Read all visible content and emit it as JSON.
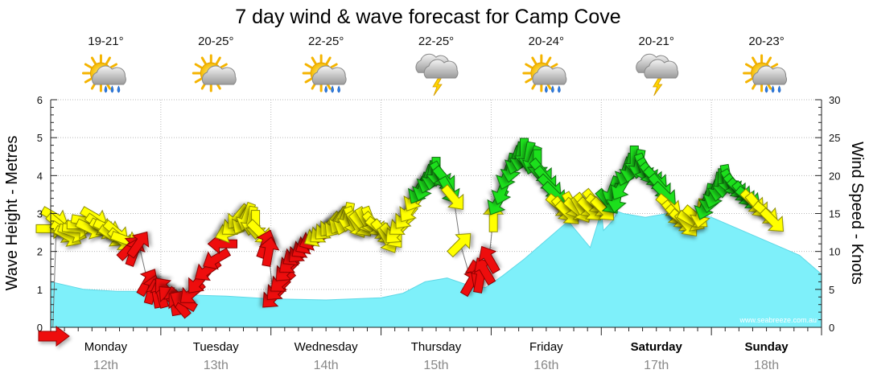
{
  "chart_data": {
    "type": "area+arrows",
    "title": "7 day wind & wave forecast for Camp Cove",
    "ylabel_left": "Wave Height - Metres",
    "ylabel_right": "Wind Speed - Knots",
    "ylim_left": [
      0,
      6
    ],
    "ylim_right": [
      0,
      30
    ],
    "yticks_left": [
      "0",
      "1",
      "2",
      "3",
      "4",
      "5",
      "6"
    ],
    "yticks_right": [
      "0",
      "5",
      "10",
      "15",
      "20",
      "25",
      "30"
    ],
    "watermark": "www.seabreeze.com.au",
    "days": [
      {
        "name": "Monday",
        "date": "12th",
        "temp": "19-21°",
        "weather": "sun-cloud-rain",
        "bold": false
      },
      {
        "name": "Tuesday",
        "date": "13th",
        "temp": "20-25°",
        "weather": "sun-cloud",
        "bold": false
      },
      {
        "name": "Wednesday",
        "date": "14th",
        "temp": "22-25°",
        "weather": "sun-cloud-rain",
        "bold": false
      },
      {
        "name": "Thursday",
        "date": "15th",
        "temp": "22-25°",
        "weather": "storm",
        "bold": false
      },
      {
        "name": "Friday",
        "date": "16th",
        "temp": "20-24°",
        "weather": "sun-cloud-rain",
        "bold": false
      },
      {
        "name": "Saturday",
        "date": "17th",
        "temp": "20-21°",
        "weather": "storm",
        "bold": true
      },
      {
        "name": "Sunday",
        "date": "18th",
        "temp": "20-23°",
        "weather": "sun-cloud-rain",
        "bold": true
      }
    ],
    "wave_height": {
      "x_days": [
        0,
        0.3,
        0.6,
        1.0,
        1.3,
        1.6,
        2.0,
        2.5,
        3.0,
        3.2,
        3.4,
        3.6,
        3.8,
        3.95,
        4.1,
        4.3,
        4.5,
        4.7,
        4.9,
        5.0,
        5.02,
        5.1,
        5.15,
        5.2,
        5.4,
        5.6,
        5.8,
        6.0,
        6.4,
        6.8,
        7.0
      ],
      "metres": [
        1.2,
        1.0,
        0.95,
        0.95,
        0.85,
        0.82,
        0.75,
        0.72,
        0.78,
        0.9,
        1.2,
        1.3,
        1.1,
        1.05,
        1.35,
        1.8,
        2.3,
        2.8,
        2.1,
        3.05,
        2.55,
        2.8,
        3.05,
        3.0,
        2.9,
        3.0,
        3.05,
        2.9,
        2.4,
        1.9,
        1.4
      ]
    },
    "wind": [
      {
        "d": 0.0,
        "kn": 13.0,
        "dir": 90,
        "c": "yellow"
      },
      {
        "d": 0.04,
        "kn": 14.5,
        "dir": 120,
        "c": "yellow"
      },
      {
        "d": 0.08,
        "kn": 13.5,
        "dir": 130,
        "c": "yellow"
      },
      {
        "d": 0.12,
        "kn": 12.5,
        "dir": 125,
        "c": "yellow"
      },
      {
        "d": 0.16,
        "kn": 12.0,
        "dir": 120,
        "c": "yellow"
      },
      {
        "d": 0.2,
        "kn": 12.5,
        "dir": 110,
        "c": "yellow"
      },
      {
        "d": 0.24,
        "kn": 13.0,
        "dir": 95,
        "c": "yellow"
      },
      {
        "d": 0.28,
        "kn": 13.5,
        "dir": 90,
        "c": "yellow"
      },
      {
        "d": 0.32,
        "kn": 14.0,
        "dir": 100,
        "c": "yellow"
      },
      {
        "d": 0.36,
        "kn": 13.0,
        "dir": 115,
        "c": "yellow"
      },
      {
        "d": 0.4,
        "kn": 14.5,
        "dir": 120,
        "c": "yellow"
      },
      {
        "d": 0.44,
        "kn": 13.5,
        "dir": 125,
        "c": "yellow"
      },
      {
        "d": 0.48,
        "kn": 13.0,
        "dir": 120,
        "c": "yellow"
      },
      {
        "d": 0.52,
        "kn": 13.0,
        "dir": 115,
        "c": "yellow"
      },
      {
        "d": 0.56,
        "kn": 12.0,
        "dir": 125,
        "c": "yellow"
      },
      {
        "d": 0.6,
        "kn": 12.5,
        "dir": 130,
        "c": "yellow"
      },
      {
        "d": 0.64,
        "kn": 11.5,
        "dir": 130,
        "c": "yellow"
      },
      {
        "d": 0.68,
        "kn": 11.5,
        "dir": 110,
        "c": "yellow"
      },
      {
        "d": 0.72,
        "kn": 10.5,
        "dir": 45,
        "c": "red"
      },
      {
        "d": 0.76,
        "kn": 10.0,
        "dir": 20,
        "c": "red"
      },
      {
        "d": 0.8,
        "kn": 11.0,
        "dir": 35,
        "c": "red"
      },
      {
        "d": 0.88,
        "kn": 6.0,
        "dir": 30,
        "c": "red"
      },
      {
        "d": 0.92,
        "kn": 5.0,
        "dir": 15,
        "c": "red"
      },
      {
        "d": 0.96,
        "kn": 4.5,
        "dir": 350,
        "c": "red"
      },
      {
        "d": 1.0,
        "kn": 4.5,
        "dir": 345,
        "c": "red"
      },
      {
        "d": 1.04,
        "kn": 5.0,
        "dir": 320,
        "c": "red"
      },
      {
        "d": 1.08,
        "kn": 4.0,
        "dir": 315,
        "c": "red"
      },
      {
        "d": 1.12,
        "kn": 3.5,
        "dir": 350,
        "c": "red"
      },
      {
        "d": 1.16,
        "kn": 3.0,
        "dir": 320,
        "c": "red"
      },
      {
        "d": 1.2,
        "kn": 3.5,
        "dir": 300,
        "c": "red"
      },
      {
        "d": 1.28,
        "kn": 4.5,
        "dir": 230,
        "c": "red"
      },
      {
        "d": 1.34,
        "kn": 6.0,
        "dir": 220,
        "c": "red"
      },
      {
        "d": 1.42,
        "kn": 7.5,
        "dir": 235,
        "c": "red"
      },
      {
        "d": 1.5,
        "kn": 9.0,
        "dir": 240,
        "c": "red"
      },
      {
        "d": 1.56,
        "kn": 11.0,
        "dir": 270,
        "c": "red"
      },
      {
        "d": 1.62,
        "kn": 12.5,
        "dir": 250,
        "c": "yellow"
      },
      {
        "d": 1.66,
        "kn": 13.5,
        "dir": 230,
        "c": "yellow"
      },
      {
        "d": 1.7,
        "kn": 14.5,
        "dir": 220,
        "c": "yellow"
      },
      {
        "d": 1.74,
        "kn": 14.0,
        "dir": 210,
        "c": "yellow"
      },
      {
        "d": 1.78,
        "kn": 14.5,
        "dir": 200,
        "c": "yellow"
      },
      {
        "d": 1.82,
        "kn": 14.0,
        "dir": 190,
        "c": "yellow"
      },
      {
        "d": 1.86,
        "kn": 13.5,
        "dir": 180,
        "c": "yellow"
      },
      {
        "d": 1.9,
        "kn": 12.5,
        "dir": 135,
        "c": "yellow"
      },
      {
        "d": 1.95,
        "kn": 11.0,
        "dir": 20,
        "c": "red"
      },
      {
        "d": 1.98,
        "kn": 10.0,
        "dir": 10,
        "c": "red"
      },
      {
        "d": 2.02,
        "kn": 4.0,
        "dir": 225,
        "c": "red"
      },
      {
        "d": 2.06,
        "kn": 5.0,
        "dir": 225,
        "c": "red"
      },
      {
        "d": 2.1,
        "kn": 6.0,
        "dir": 230,
        "c": "red"
      },
      {
        "d": 2.14,
        "kn": 7.5,
        "dir": 225,
        "c": "red"
      },
      {
        "d": 2.18,
        "kn": 8.5,
        "dir": 230,
        "c": "red"
      },
      {
        "d": 2.22,
        "kn": 9.5,
        "dir": 235,
        "c": "red"
      },
      {
        "d": 2.26,
        "kn": 10.0,
        "dir": 225,
        "c": "red"
      },
      {
        "d": 2.3,
        "kn": 10.5,
        "dir": 235,
        "c": "red"
      },
      {
        "d": 2.34,
        "kn": 11.0,
        "dir": 240,
        "c": "red"
      },
      {
        "d": 2.38,
        "kn": 11.5,
        "dir": 245,
        "c": "red"
      },
      {
        "d": 2.42,
        "kn": 12.0,
        "dir": 240,
        "c": "yellow"
      },
      {
        "d": 2.46,
        "kn": 12.5,
        "dir": 230,
        "c": "yellow"
      },
      {
        "d": 2.5,
        "kn": 13.0,
        "dir": 225,
        "c": "yellow"
      },
      {
        "d": 2.54,
        "kn": 13.5,
        "dir": 220,
        "c": "yellow"
      },
      {
        "d": 2.58,
        "kn": 13.5,
        "dir": 215,
        "c": "yellow"
      },
      {
        "d": 2.62,
        "kn": 14.0,
        "dir": 210,
        "c": "yellow"
      },
      {
        "d": 2.66,
        "kn": 14.0,
        "dir": 200,
        "c": "yellow"
      },
      {
        "d": 2.7,
        "kn": 14.5,
        "dir": 190,
        "c": "yellow"
      },
      {
        "d": 2.74,
        "kn": 14.0,
        "dir": 160,
        "c": "yellow"
      },
      {
        "d": 2.78,
        "kn": 13.5,
        "dir": 150,
        "c": "yellow"
      },
      {
        "d": 2.82,
        "kn": 13.5,
        "dir": 140,
        "c": "yellow"
      },
      {
        "d": 2.86,
        "kn": 14.0,
        "dir": 150,
        "c": "yellow"
      },
      {
        "d": 2.9,
        "kn": 14.0,
        "dir": 160,
        "c": "yellow"
      },
      {
        "d": 2.94,
        "kn": 13.5,
        "dir": 140,
        "c": "yellow"
      },
      {
        "d": 2.98,
        "kn": 13.0,
        "dir": 130,
        "c": "yellow"
      },
      {
        "d": 3.02,
        "kn": 12.5,
        "dir": 140,
        "c": "yellow"
      },
      {
        "d": 3.06,
        "kn": 11.5,
        "dir": 150,
        "c": "yellow"
      },
      {
        "d": 3.1,
        "kn": 12.0,
        "dir": 140,
        "c": "yellow"
      },
      {
        "d": 3.14,
        "kn": 12.5,
        "dir": 225,
        "c": "yellow"
      },
      {
        "d": 3.18,
        "kn": 13.5,
        "dir": 230,
        "c": "yellow"
      },
      {
        "d": 3.22,
        "kn": 14.5,
        "dir": 220,
        "c": "yellow"
      },
      {
        "d": 3.26,
        "kn": 15.5,
        "dir": 215,
        "c": "yellow"
      },
      {
        "d": 3.3,
        "kn": 17.0,
        "dir": 210,
        "c": "yellow"
      },
      {
        "d": 3.34,
        "kn": 18.0,
        "dir": 210,
        "c": "green"
      },
      {
        "d": 3.38,
        "kn": 18.5,
        "dir": 200,
        "c": "green"
      },
      {
        "d": 3.42,
        "kn": 19.5,
        "dir": 200,
        "c": "green"
      },
      {
        "d": 3.46,
        "kn": 20.0,
        "dir": 190,
        "c": "green"
      },
      {
        "d": 3.5,
        "kn": 20.5,
        "dir": 180,
        "c": "green"
      },
      {
        "d": 3.54,
        "kn": 20.0,
        "dir": 150,
        "c": "green"
      },
      {
        "d": 3.58,
        "kn": 19.5,
        "dir": 140,
        "c": "green"
      },
      {
        "d": 3.62,
        "kn": 18.0,
        "dir": 150,
        "c": "green"
      },
      {
        "d": 3.66,
        "kn": 17.0,
        "dir": 140,
        "c": "yellow"
      },
      {
        "d": 3.72,
        "kn": 11.0,
        "dir": 45,
        "c": "yellow"
      },
      {
        "d": 3.82,
        "kn": 6.0,
        "dir": 30,
        "c": "red"
      },
      {
        "d": 3.86,
        "kn": 7.0,
        "dir": 350,
        "c": "red"
      },
      {
        "d": 3.9,
        "kn": 6.5,
        "dir": 10,
        "c": "red"
      },
      {
        "d": 3.94,
        "kn": 7.5,
        "dir": 330,
        "c": "red"
      },
      {
        "d": 3.98,
        "kn": 9.0,
        "dir": 330,
        "c": "red"
      },
      {
        "d": 4.02,
        "kn": 14.5,
        "dir": 0,
        "c": "yellow"
      },
      {
        "d": 4.06,
        "kn": 16.5,
        "dir": 210,
        "c": "green"
      },
      {
        "d": 4.1,
        "kn": 18.0,
        "dir": 200,
        "c": "green"
      },
      {
        "d": 4.14,
        "kn": 20.0,
        "dir": 200,
        "c": "green"
      },
      {
        "d": 4.18,
        "kn": 21.0,
        "dir": 190,
        "c": "green"
      },
      {
        "d": 4.22,
        "kn": 22.0,
        "dir": 200,
        "c": "green"
      },
      {
        "d": 4.26,
        "kn": 22.5,
        "dir": 190,
        "c": "green"
      },
      {
        "d": 4.3,
        "kn": 23.0,
        "dir": 180,
        "c": "green"
      },
      {
        "d": 4.34,
        "kn": 22.5,
        "dir": 190,
        "c": "green"
      },
      {
        "d": 4.38,
        "kn": 22.0,
        "dir": 200,
        "c": "green"
      },
      {
        "d": 4.42,
        "kn": 21.5,
        "dir": 180,
        "c": "green"
      },
      {
        "d": 4.46,
        "kn": 20.5,
        "dir": 140,
        "c": "green"
      },
      {
        "d": 4.5,
        "kn": 19.5,
        "dir": 140,
        "c": "green"
      },
      {
        "d": 4.54,
        "kn": 18.5,
        "dir": 135,
        "c": "green"
      },
      {
        "d": 4.58,
        "kn": 17.5,
        "dir": 135,
        "c": "green"
      },
      {
        "d": 4.62,
        "kn": 16.0,
        "dir": 130,
        "c": "yellow"
      },
      {
        "d": 4.66,
        "kn": 15.5,
        "dir": 140,
        "c": "yellow"
      },
      {
        "d": 4.7,
        "kn": 15.0,
        "dir": 135,
        "c": "yellow"
      },
      {
        "d": 4.74,
        "kn": 16.0,
        "dir": 150,
        "c": "yellow"
      },
      {
        "d": 4.78,
        "kn": 15.5,
        "dir": 130,
        "c": "yellow"
      },
      {
        "d": 4.82,
        "kn": 15.5,
        "dir": 150,
        "c": "yellow"
      },
      {
        "d": 4.86,
        "kn": 16.0,
        "dir": 140,
        "c": "yellow"
      },
      {
        "d": 4.9,
        "kn": 15.5,
        "dir": 135,
        "c": "yellow"
      },
      {
        "d": 4.94,
        "kn": 16.5,
        "dir": 140,
        "c": "yellow"
      },
      {
        "d": 4.98,
        "kn": 16.0,
        "dir": 130,
        "c": "yellow"
      },
      {
        "d": 5.02,
        "kn": 15.5,
        "dir": 135,
        "c": "yellow"
      },
      {
        "d": 5.06,
        "kn": 16.5,
        "dir": 140,
        "c": "green"
      },
      {
        "d": 5.1,
        "kn": 18.0,
        "dir": 200,
        "c": "green"
      },
      {
        "d": 5.14,
        "kn": 17.0,
        "dir": 190,
        "c": "green"
      },
      {
        "d": 5.18,
        "kn": 18.5,
        "dir": 210,
        "c": "green"
      },
      {
        "d": 5.22,
        "kn": 20.5,
        "dir": 200,
        "c": "green"
      },
      {
        "d": 5.26,
        "kn": 21.0,
        "dir": 190,
        "c": "green"
      },
      {
        "d": 5.3,
        "kn": 22.0,
        "dir": 180,
        "c": "green"
      },
      {
        "d": 5.34,
        "kn": 21.5,
        "dir": 190,
        "c": "green"
      },
      {
        "d": 5.38,
        "kn": 21.0,
        "dir": 160,
        "c": "green"
      },
      {
        "d": 5.42,
        "kn": 20.5,
        "dir": 150,
        "c": "green"
      },
      {
        "d": 5.46,
        "kn": 20.0,
        "dir": 140,
        "c": "green"
      },
      {
        "d": 5.5,
        "kn": 19.5,
        "dir": 135,
        "c": "green"
      },
      {
        "d": 5.54,
        "kn": 18.5,
        "dir": 140,
        "c": "green"
      },
      {
        "d": 5.58,
        "kn": 17.5,
        "dir": 135,
        "c": "green"
      },
      {
        "d": 5.62,
        "kn": 16.0,
        "dir": 130,
        "c": "yellow"
      },
      {
        "d": 5.66,
        "kn": 15.0,
        "dir": 140,
        "c": "yellow"
      },
      {
        "d": 5.7,
        "kn": 14.5,
        "dir": 135,
        "c": "yellow"
      },
      {
        "d": 5.74,
        "kn": 14.0,
        "dir": 130,
        "c": "yellow"
      },
      {
        "d": 5.78,
        "kn": 13.5,
        "dir": 140,
        "c": "yellow"
      },
      {
        "d": 5.82,
        "kn": 14.0,
        "dir": 120,
        "c": "yellow"
      },
      {
        "d": 5.86,
        "kn": 14.5,
        "dir": 130,
        "c": "yellow"
      },
      {
        "d": 5.9,
        "kn": 15.0,
        "dir": 190,
        "c": "yellow"
      },
      {
        "d": 5.94,
        "kn": 16.0,
        "dir": 200,
        "c": "green"
      },
      {
        "d": 5.98,
        "kn": 17.0,
        "dir": 190,
        "c": "green"
      },
      {
        "d": 6.02,
        "kn": 17.5,
        "dir": 200,
        "c": "green"
      },
      {
        "d": 6.06,
        "kn": 18.5,
        "dir": 190,
        "c": "green"
      },
      {
        "d": 6.1,
        "kn": 19.0,
        "dir": 180,
        "c": "green"
      },
      {
        "d": 6.14,
        "kn": 19.5,
        "dir": 170,
        "c": "green"
      },
      {
        "d": 6.18,
        "kn": 19.0,
        "dir": 150,
        "c": "green"
      },
      {
        "d": 6.22,
        "kn": 18.5,
        "dir": 140,
        "c": "green"
      },
      {
        "d": 6.26,
        "kn": 18.0,
        "dir": 135,
        "c": "green"
      },
      {
        "d": 6.3,
        "kn": 17.5,
        "dir": 140,
        "c": "green"
      },
      {
        "d": 6.34,
        "kn": 17.0,
        "dir": 130,
        "c": "green"
      },
      {
        "d": 6.38,
        "kn": 16.5,
        "dir": 135,
        "c": "yellow"
      },
      {
        "d": 6.42,
        "kn": 16.0,
        "dir": 140,
        "c": "yellow"
      },
      {
        "d": 6.5,
        "kn": 15.0,
        "dir": 130,
        "c": "yellow"
      },
      {
        "d": 6.56,
        "kn": 14.0,
        "dir": 135,
        "c": "yellow"
      }
    ]
  },
  "legend_marker": {
    "direction": "arrow-right",
    "color": "#ee1111"
  }
}
